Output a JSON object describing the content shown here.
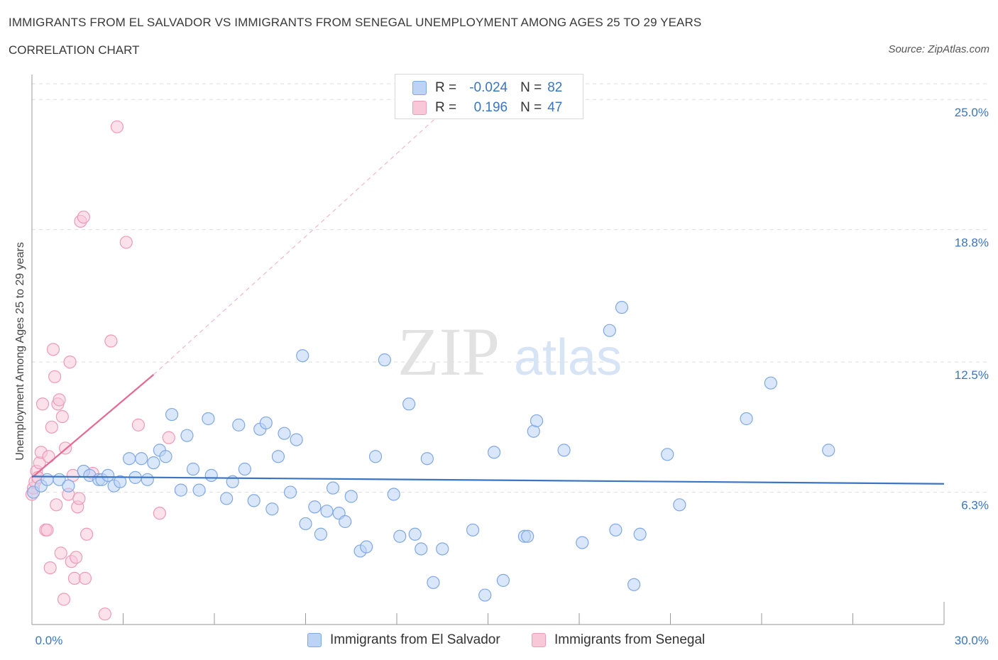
{
  "title": "IMMIGRANTS FROM EL SALVADOR VS IMMIGRANTS FROM SENEGAL UNEMPLOYMENT AMONG AGES 25 TO 29 YEARS",
  "subtitle": "CORRELATION CHART",
  "source": "Source: ZipAtlas.com",
  "watermark": {
    "zip": "ZIP",
    "atlas": "atlas"
  },
  "colors": {
    "blue_fill": "#bcd3f6",
    "blue_stroke": "#7fa8e6",
    "blue_line": "#3a75c4",
    "pink_fill": "#f8c8d8",
    "pink_stroke": "#ee9ab8",
    "pink_line": "#e46a94",
    "axis_label": "#3a75c4",
    "grid": "#dddddd"
  },
  "legend": {
    "r_label": "R =",
    "n_label": "N =",
    "series1": {
      "r": "-0.024",
      "n": "82"
    },
    "series2": {
      "r": "0.196",
      "n": "47"
    }
  },
  "chart_data": {
    "type": "scatter",
    "title": "IMMIGRANTS FROM EL SALVADOR VS IMMIGRANTS FROM SENEGAL UNEMPLOYMENT AMONG AGES 25 TO 29 YEARS",
    "xlabel": "",
    "ylabel": "Unemployment Among Ages 25 to 29 years",
    "xlim": [
      0,
      30
    ],
    "ylim": [
      0,
      25.75
    ],
    "x_tick_labels": [
      "0.0%",
      "30.0%"
    ],
    "y_ticks": [
      6.3,
      12.5,
      18.8,
      25.0
    ],
    "y_tick_labels": [
      "6.3%",
      "12.5%",
      "18.8%",
      "25.0%"
    ],
    "grid": true,
    "series": [
      {
        "name": "Immigrants from El Salvador",
        "color": "#7fa8e6",
        "r": -0.024,
        "n": 82,
        "trend": {
          "x": [
            0,
            30
          ],
          "y": [
            7.05,
            6.7
          ]
        },
        "points": [
          [
            0.05,
            6.3
          ],
          [
            0.3,
            6.6
          ],
          [
            0.5,
            6.9
          ],
          [
            0.9,
            6.9
          ],
          [
            1.2,
            6.6
          ],
          [
            1.7,
            7.3
          ],
          [
            1.9,
            7.1
          ],
          [
            2.2,
            6.9
          ],
          [
            2.3,
            6.9
          ],
          [
            2.5,
            7.1
          ],
          [
            2.7,
            6.6
          ],
          [
            2.9,
            6.8
          ],
          [
            3.2,
            7.9
          ],
          [
            3.4,
            7.0
          ],
          [
            3.6,
            7.9
          ],
          [
            3.8,
            6.9
          ],
          [
            4.0,
            7.7
          ],
          [
            4.2,
            8.3
          ],
          [
            4.4,
            8.0
          ],
          [
            4.6,
            10.0
          ],
          [
            4.9,
            6.4
          ],
          [
            5.1,
            9.0
          ],
          [
            5.3,
            7.4
          ],
          [
            5.5,
            6.4
          ],
          [
            5.8,
            9.8
          ],
          [
            5.9,
            7.1
          ],
          [
            6.4,
            6.0
          ],
          [
            6.6,
            6.8
          ],
          [
            6.8,
            9.5
          ],
          [
            7.0,
            7.4
          ],
          [
            7.3,
            5.9
          ],
          [
            7.5,
            9.3
          ],
          [
            7.7,
            9.6
          ],
          [
            7.9,
            5.5
          ],
          [
            8.1,
            8.0
          ],
          [
            8.3,
            9.1
          ],
          [
            8.5,
            6.3
          ],
          [
            8.7,
            8.8
          ],
          [
            8.9,
            12.8
          ],
          [
            9.0,
            4.8
          ],
          [
            9.3,
            5.6
          ],
          [
            9.5,
            4.3
          ],
          [
            9.7,
            5.4
          ],
          [
            9.9,
            6.5
          ],
          [
            10.1,
            5.3
          ],
          [
            10.3,
            4.9
          ],
          [
            10.5,
            6.1
          ],
          [
            10.8,
            3.5
          ],
          [
            11.0,
            3.7
          ],
          [
            11.3,
            8.0
          ],
          [
            11.6,
            12.6
          ],
          [
            11.9,
            6.2
          ],
          [
            12.1,
            4.2
          ],
          [
            12.4,
            10.5
          ],
          [
            12.6,
            4.3
          ],
          [
            12.8,
            3.6
          ],
          [
            13.0,
            7.9
          ],
          [
            13.2,
            2.0
          ],
          [
            13.5,
            3.6
          ],
          [
            14.5,
            4.5
          ],
          [
            14.9,
            1.4
          ],
          [
            15.2,
            8.2
          ],
          [
            15.5,
            2.1
          ],
          [
            16.2,
            4.2
          ],
          [
            16.3,
            4.2
          ],
          [
            16.5,
            9.2
          ],
          [
            16.6,
            9.7
          ],
          [
            17.5,
            8.3
          ],
          [
            18.1,
            3.9
          ],
          [
            19.0,
            14.0
          ],
          [
            19.2,
            4.5
          ],
          [
            19.4,
            15.1
          ],
          [
            19.8,
            1.9
          ],
          [
            20.0,
            4.3
          ],
          [
            20.9,
            8.1
          ],
          [
            21.3,
            5.7
          ],
          [
            23.5,
            9.8
          ],
          [
            24.3,
            11.5
          ],
          [
            26.2,
            8.3
          ]
        ]
      },
      {
        "name": "Immigrants from Senegal",
        "color": "#ee9ab8",
        "r": 0.196,
        "n": 47,
        "trend": {
          "x": [
            0,
            4.0
          ],
          "y": [
            7.0,
            11.9
          ]
        },
        "trend_extended": {
          "x": [
            4.0,
            13.5
          ],
          "y": [
            11.9,
            24.4
          ]
        },
        "points": [
          [
            0.0,
            6.2
          ],
          [
            0.05,
            6.5
          ],
          [
            0.1,
            6.8
          ],
          [
            0.15,
            7.3
          ],
          [
            0.2,
            7.0
          ],
          [
            0.25,
            7.7
          ],
          [
            0.3,
            8.2
          ],
          [
            0.35,
            10.5
          ],
          [
            0.45,
            4.5
          ],
          [
            0.5,
            4.5
          ],
          [
            0.55,
            8.0
          ],
          [
            0.6,
            2.7
          ],
          [
            0.65,
            9.4
          ],
          [
            0.7,
            13.1
          ],
          [
            0.75,
            11.8
          ],
          [
            0.8,
            5.7
          ],
          [
            0.85,
            10.5
          ],
          [
            0.9,
            10.7
          ],
          [
            0.95,
            3.4
          ],
          [
            1.0,
            9.9
          ],
          [
            1.05,
            1.2
          ],
          [
            1.1,
            8.4
          ],
          [
            1.2,
            6.2
          ],
          [
            1.25,
            12.5
          ],
          [
            1.3,
            3.0
          ],
          [
            1.35,
            7.1
          ],
          [
            1.4,
            2.2
          ],
          [
            1.45,
            3.2
          ],
          [
            1.5,
            5.6
          ],
          [
            1.55,
            6.0
          ],
          [
            1.6,
            19.2
          ],
          [
            1.7,
            19.4
          ],
          [
            1.75,
            2.2
          ],
          [
            1.8,
            4.3
          ],
          [
            2.0,
            7.2
          ],
          [
            2.4,
            0.5
          ],
          [
            2.6,
            13.5
          ],
          [
            2.8,
            23.7
          ],
          [
            3.1,
            18.2
          ],
          [
            3.5,
            9.5
          ],
          [
            4.2,
            5.3
          ],
          [
            4.5,
            8.9
          ]
        ]
      }
    ]
  },
  "bottom_legend": {
    "series1": "Immigrants from El Salvador",
    "series2": "Immigrants from Senegal"
  }
}
